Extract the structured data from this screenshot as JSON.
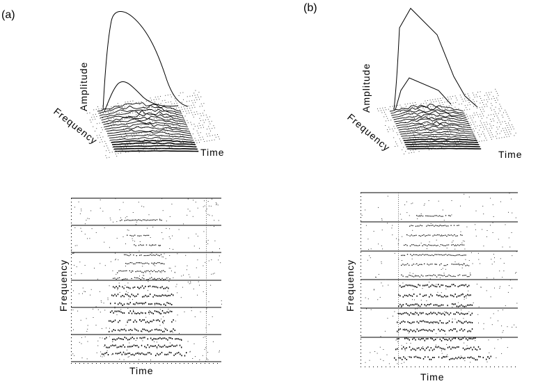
{
  "figure": {
    "panels": [
      {
        "id": "a",
        "label": "(a)",
        "surface_plot": {
          "z_label": "Amplitude",
          "y_label": "Frequency",
          "x_label": "Time"
        },
        "spectrogram": {
          "y_label": "Frequency",
          "x_label": "Time"
        }
      },
      {
        "id": "b",
        "label": "(b)",
        "surface_plot": {
          "z_label": "Amplitude",
          "y_label": "Frequency",
          "x_label": "Time"
        },
        "spectrogram": {
          "y_label": "Frequency",
          "x_label": "Time"
        }
      }
    ]
  }
}
